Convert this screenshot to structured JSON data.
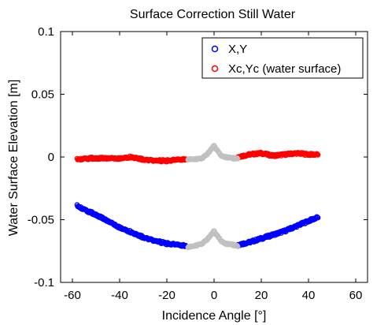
{
  "chart_data": {
    "type": "scatter",
    "title": "Surface Correction Still Water",
    "xlabel": "Incidence Angle [°]",
    "ylabel": "Water Surface Elevation [m]",
    "xlim": [
      -65,
      65
    ],
    "ylim": [
      -0.1,
      0.1
    ],
    "xticks": [
      -60,
      -40,
      -20,
      0,
      20,
      40,
      60
    ],
    "xtick_labels": [
      "-60",
      "-40",
      "-20",
      "0",
      "20",
      "40",
      "60"
    ],
    "yticks": [
      0.1,
      0.05,
      0,
      -0.05,
      -0.1
    ],
    "ytick_labels": [
      "0.1",
      "0.05",
      "0",
      "-0.05",
      "-0.1"
    ],
    "grid": false,
    "legend_position": "top-right",
    "series": [
      {
        "name": "X,Y",
        "color": "#0000ff",
        "marker": "circle-open",
        "x": [
          -58,
          -55,
          -50,
          -45,
          -40,
          -35,
          -30,
          -25,
          -20,
          -15,
          -12
        ],
        "y": [
          -0.039,
          -0.042,
          -0.046,
          -0.051,
          -0.056,
          -0.06,
          -0.064,
          -0.067,
          -0.069,
          -0.07,
          -0.071
        ]
      },
      {
        "name": "Xc,Yc (water surface)",
        "color": "#ff0000",
        "marker": "circle-open",
        "x": [
          -58,
          -52,
          -46,
          -40,
          -35,
          -30,
          -25,
          -20,
          -15,
          -12
        ],
        "y": [
          -0.002,
          -0.001,
          -0.001,
          -0.001,
          0.0,
          -0.002,
          -0.003,
          -0.003,
          -0.002,
          -0.002
        ]
      }
    ],
    "excluded_points": {
      "color": "#c0c0c0",
      "marker": "circle-open",
      "x_raw": [
        -11,
        -8,
        -5,
        -3,
        -1,
        0,
        1,
        3,
        5,
        8,
        10
      ],
      "y_raw": [
        -0.072,
        -0.071,
        -0.069,
        -0.066,
        -0.061,
        -0.059,
        -0.062,
        -0.067,
        -0.069,
        -0.07,
        -0.071
      ],
      "x_corrected": [
        -11,
        -8,
        -5,
        -3,
        -1,
        0,
        1,
        3,
        5,
        8,
        10
      ],
      "y_corrected": [
        -0.002,
        -0.002,
        -0.001,
        0.002,
        0.007,
        0.009,
        0.006,
        0.001,
        0.0,
        -0.001,
        -0.001
      ]
    },
    "series_right": [
      {
        "name": "X,Y",
        "color": "#0000ff",
        "x": [
          10,
          15,
          20,
          25,
          30,
          35,
          40,
          44
        ],
        "y": [
          -0.07,
          -0.068,
          -0.065,
          -0.062,
          -0.059,
          -0.055,
          -0.051,
          -0.048
        ]
      },
      {
        "name": "Xc,Yc (water surface)",
        "color": "#ff0000",
        "x": [
          10,
          15,
          20,
          25,
          30,
          35,
          40,
          44
        ],
        "y": [
          0.0,
          0.002,
          0.003,
          0.001,
          0.002,
          0.003,
          0.002,
          0.002
        ]
      }
    ]
  }
}
